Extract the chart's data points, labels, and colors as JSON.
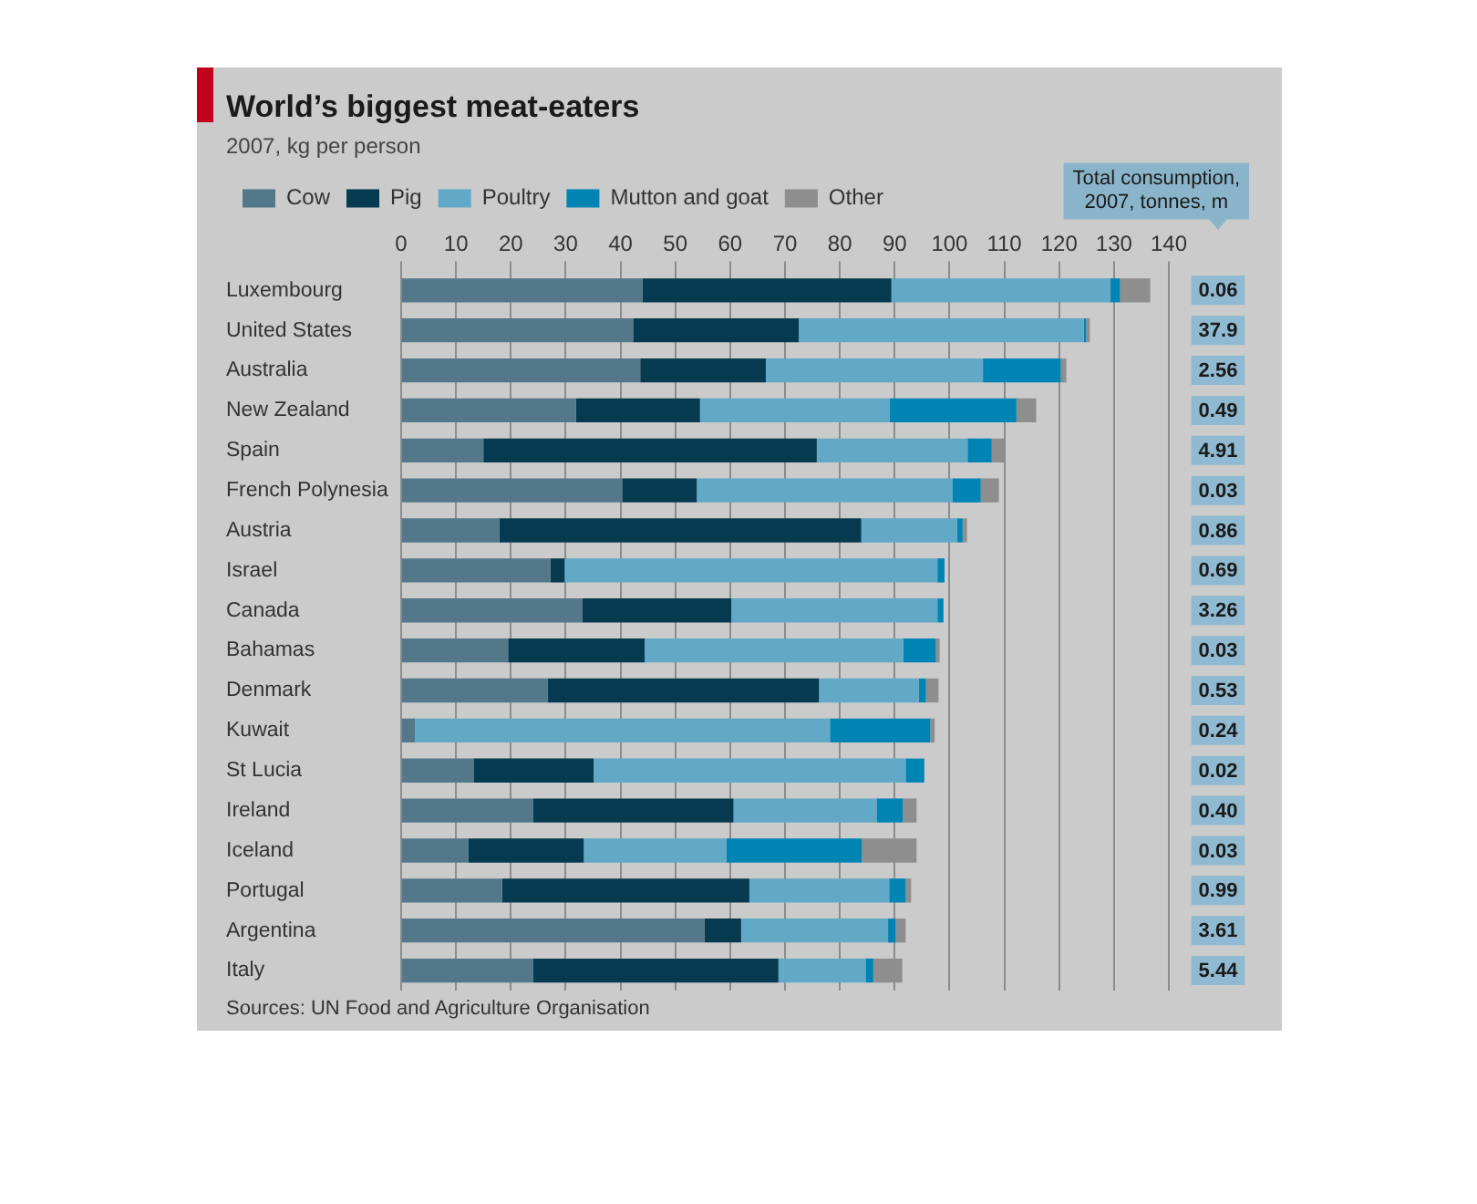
{
  "chart_data": {
    "type": "bar",
    "orientation": "horizontal",
    "stacked": true,
    "title": "World’s biggest meat-eaters",
    "subtitle": "2007, kg per person",
    "categories": [
      "Luxembourg",
      "United States",
      "Australia",
      "New Zealand",
      "Spain",
      "French Polynesia",
      "Austria",
      "Israel",
      "Canada",
      "Bahamas",
      "Denmark",
      "Kuwait",
      "St Lucia",
      "Ireland",
      "Iceland",
      "Portugal",
      "Argentina",
      "Italy"
    ],
    "series": [
      {
        "name": "Cow",
        "color": "#52788a",
        "values": [
          44.0,
          42.3,
          43.6,
          31.9,
          15.0,
          40.3,
          17.9,
          27.2,
          33.0,
          19.5,
          26.7,
          2.5,
          13.2,
          24.1,
          12.3,
          18.4,
          55.3,
          24.1
        ]
      },
      {
        "name": "Pig",
        "color": "#063a50",
        "values": [
          45.4,
          30.2,
          22.9,
          22.6,
          60.8,
          13.6,
          66.0,
          2.6,
          27.2,
          24.9,
          49.5,
          0,
          21.9,
          36.5,
          21.0,
          45.1,
          6.7,
          44.7
        ]
      },
      {
        "name": "Poultry",
        "color": "#62a8c7",
        "values": [
          39.9,
          52.0,
          39.6,
          34.6,
          27.5,
          46.6,
          17.5,
          68.0,
          37.6,
          47.2,
          18.2,
          75.7,
          56.9,
          26.1,
          26.0,
          25.5,
          26.8,
          15.9
        ]
      },
      {
        "name": "Mutton and goat",
        "color": "#0084b3",
        "values": [
          1.8,
          0.4,
          14.2,
          23.1,
          4.4,
          5.2,
          1.0,
          1.3,
          1.1,
          5.9,
          1.3,
          18.3,
          3.4,
          4.8,
          24.7,
          3.0,
          1.4,
          1.4
        ]
      },
      {
        "name": "Other",
        "color": "#8e8e8e",
        "values": [
          5.5,
          0.7,
          1.0,
          3.6,
          2.4,
          3.3,
          0.8,
          0,
          0,
          0.7,
          2.3,
          0.8,
          0,
          2.5,
          10.0,
          1.0,
          1.8,
          5.3
        ]
      }
    ],
    "xlim": [
      0,
      140
    ],
    "xticks": [
      0,
      10,
      20,
      30,
      40,
      50,
      60,
      70,
      80,
      90,
      100,
      110,
      120,
      130,
      140
    ],
    "grid": "x",
    "legend": "top left",
    "annotations": [
      "Total consumption, 2007, tonnes, m",
      "0.06",
      "37.9",
      "2.56",
      "0.49",
      "4.91",
      "0.03",
      "0.86",
      "0.69",
      "3.26",
      "0.03",
      "0.53",
      "0.24",
      "0.02",
      "0.40",
      "0.03",
      "0.99",
      "3.61",
      "5.44",
      "Sources: UN Food and Agriculture Organisation"
    ]
  }
}
